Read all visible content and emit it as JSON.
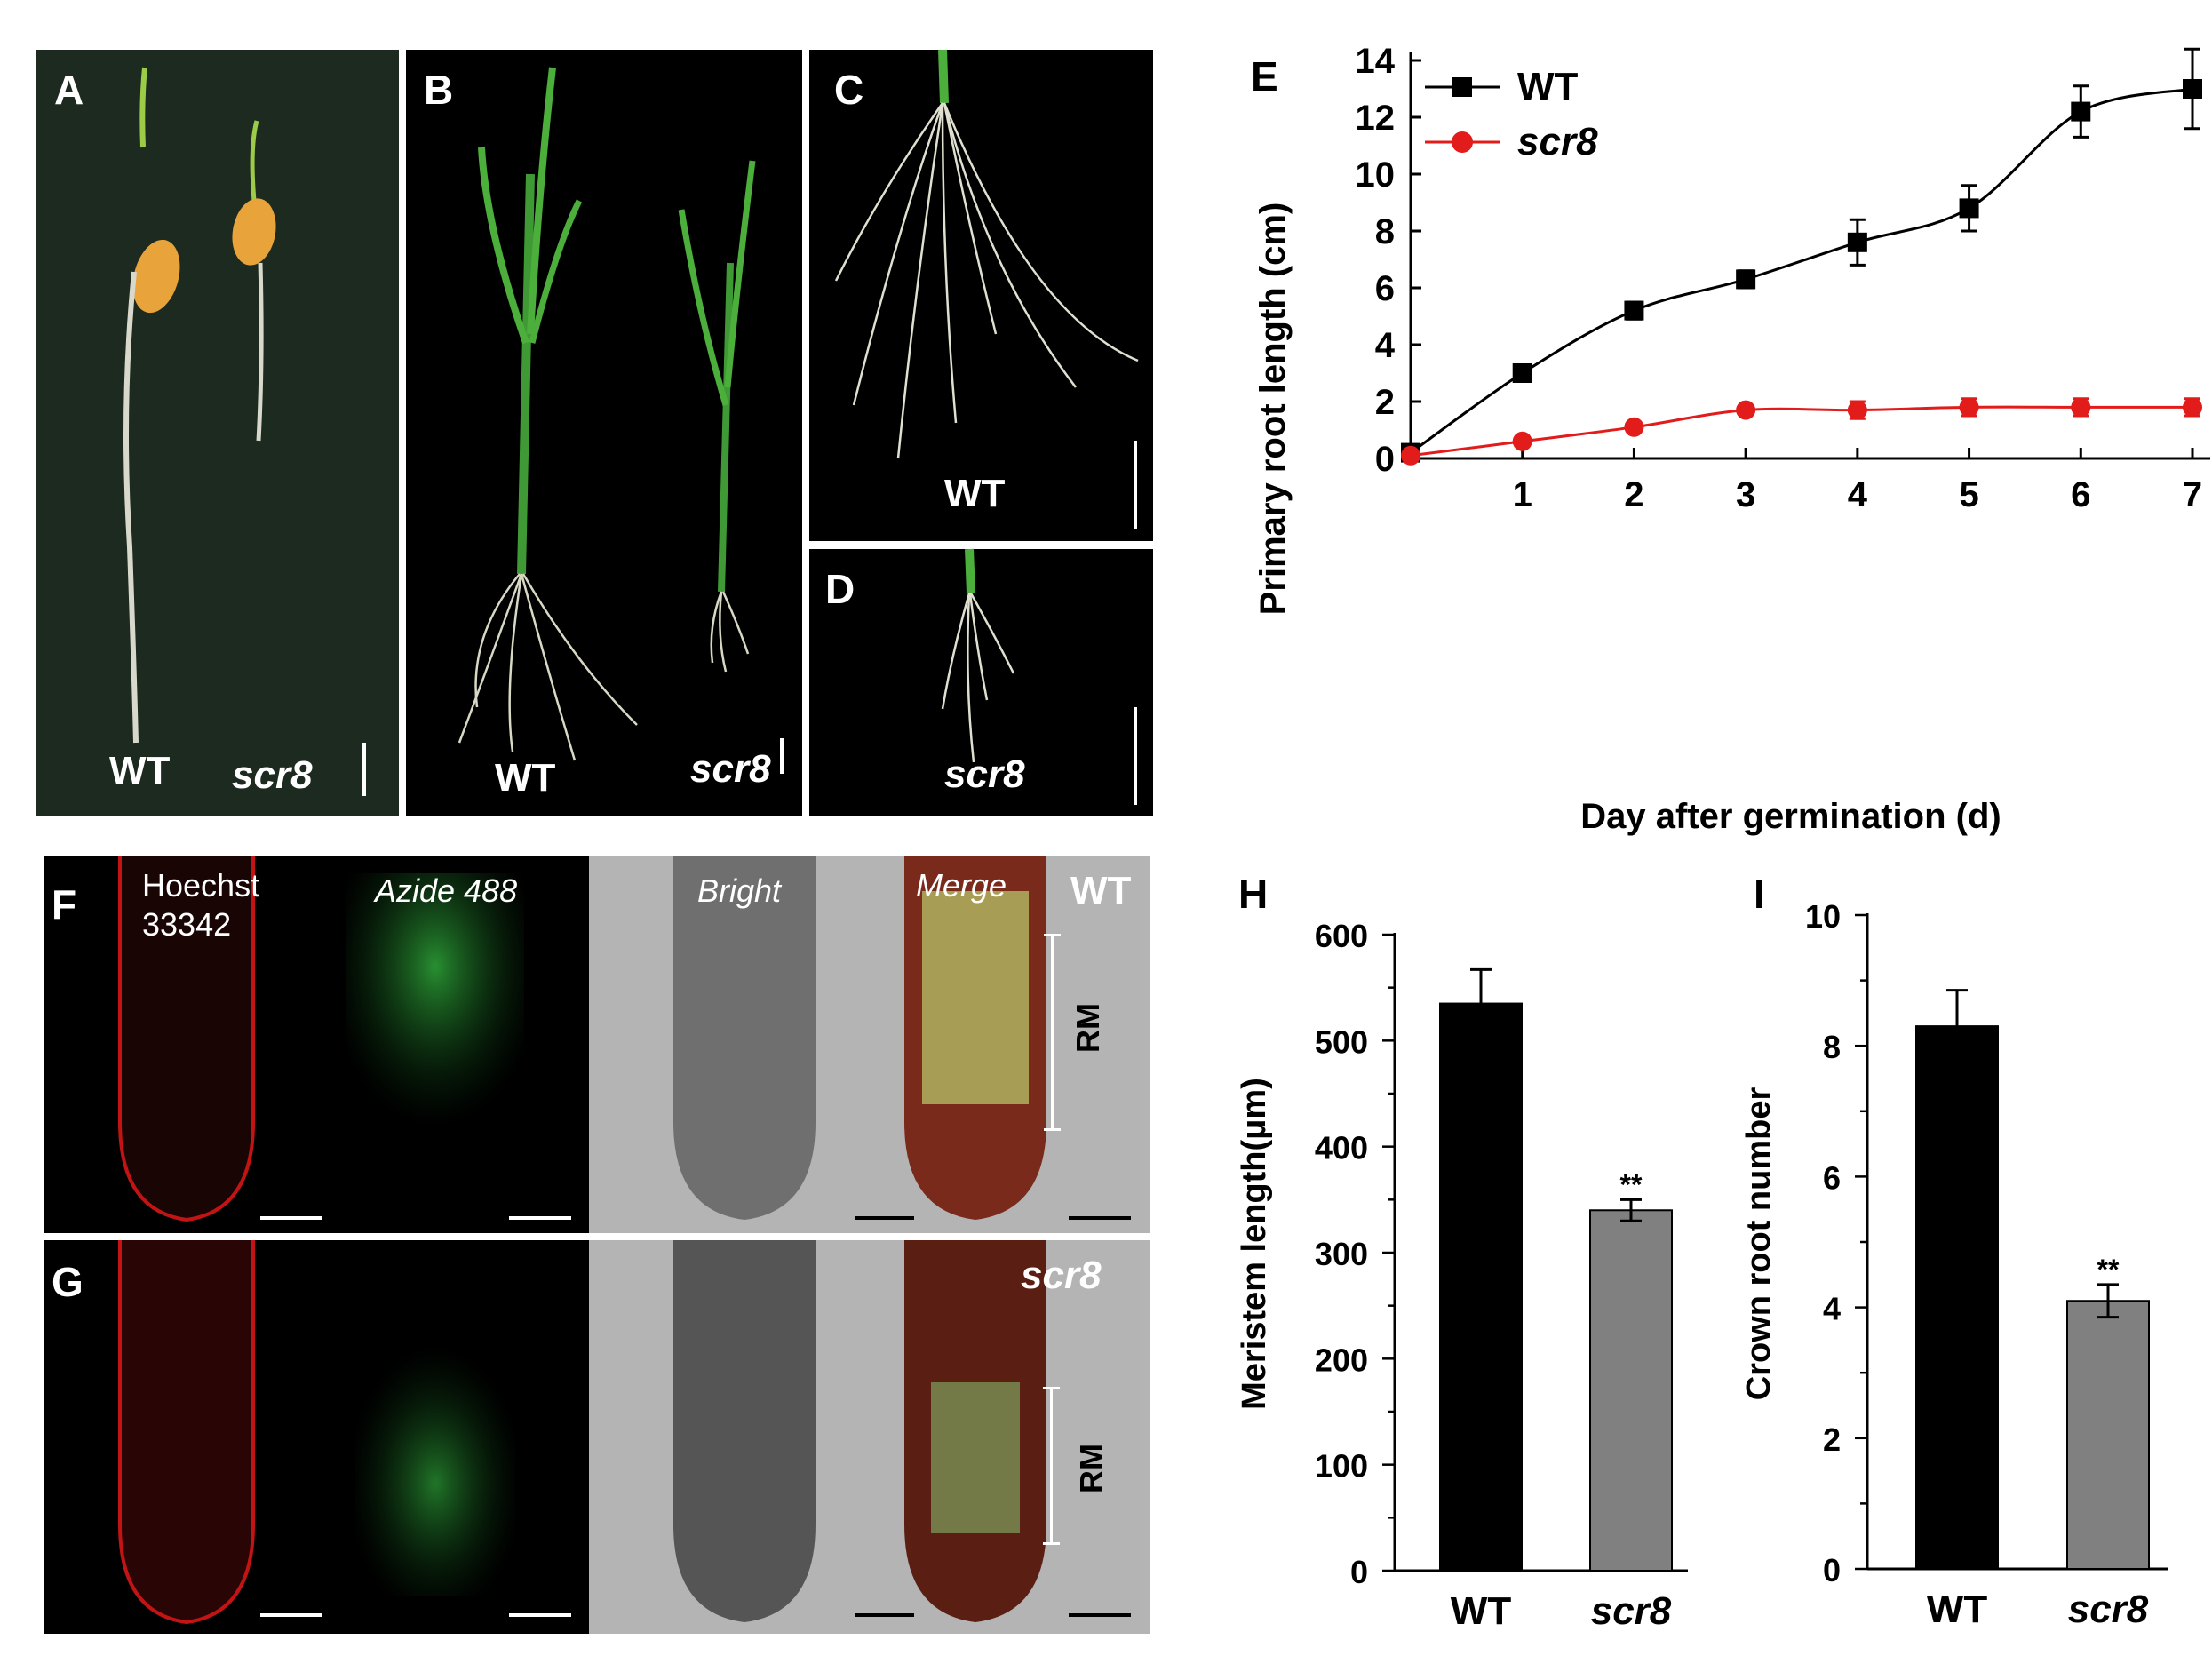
{
  "panels": {
    "A": {
      "label": "A",
      "wt": "WT",
      "mut": "scr8"
    },
    "B": {
      "label": "B",
      "wt": "WT",
      "mut": "scr8"
    },
    "C": {
      "label": "C",
      "wt": "WT"
    },
    "D": {
      "label": "D",
      "mut": "scr8"
    },
    "F": {
      "label": "F",
      "ch1": "Hoechst",
      "ch1b": "33342",
      "ch2": "Azide 488",
      "ch3": "Bright",
      "ch4": "Merge",
      "genotype": "WT",
      "rm": "RM"
    },
    "G": {
      "label": "G",
      "genotype": "scr8",
      "rm": "RM"
    }
  },
  "colors": {
    "wt": "#000000",
    "scr8": "#e21b1b",
    "bar_wt": "#000000",
    "bar_scr8": "#808080"
  },
  "chart_data": [
    {
      "id": "E",
      "label": "E",
      "type": "line",
      "xlabel": "Day after germination (d)",
      "ylabel": "Primary root length (cm)",
      "x_ticks": [
        "1",
        "2",
        "3",
        "4",
        "5",
        "6",
        "7"
      ],
      "y_ticks": [
        "0",
        "2",
        "4",
        "6",
        "8",
        "10",
        "12",
        "14"
      ],
      "xlim": [
        0,
        7
      ],
      "ylim": [
        0,
        14
      ],
      "series": [
        {
          "name": "WT",
          "x": [
            0,
            1,
            2,
            3,
            4,
            5,
            6,
            7
          ],
          "y": [
            0.2,
            3.0,
            5.2,
            6.3,
            7.6,
            8.8,
            12.2,
            13.0
          ],
          "err": [
            0,
            0.2,
            0.3,
            0.3,
            0.8,
            0.8,
            0.9,
            1.4
          ]
        },
        {
          "name": "scr8",
          "x": [
            0,
            1,
            2,
            3,
            4,
            5,
            6,
            7
          ],
          "y": [
            0.1,
            0.6,
            1.1,
            1.7,
            1.7,
            1.8,
            1.8,
            1.8
          ],
          "err": [
            0,
            0.1,
            0.1,
            0.1,
            0.3,
            0.3,
            0.3,
            0.3
          ]
        }
      ]
    },
    {
      "id": "H",
      "label": "H",
      "type": "bar",
      "ylabel": "Meristem length(μm)",
      "categories": [
        "WT",
        "scr8"
      ],
      "values": [
        535,
        340
      ],
      "errors": [
        32,
        10
      ],
      "significance": [
        "",
        "**"
      ],
      "y_ticks": [
        "0",
        "100",
        "200",
        "300",
        "400",
        "500",
        "600"
      ],
      "ylim": [
        0,
        600
      ]
    },
    {
      "id": "I",
      "label": "I",
      "type": "bar",
      "ylabel": "Crown root number",
      "categories": [
        "WT",
        "scr8"
      ],
      "values": [
        8.3,
        4.1
      ],
      "errors": [
        0.55,
        0.25
      ],
      "significance": [
        "",
        "**"
      ],
      "y_ticks": [
        "0",
        "2",
        "4",
        "6",
        "8",
        "10"
      ],
      "ylim": [
        0,
        10
      ]
    }
  ]
}
